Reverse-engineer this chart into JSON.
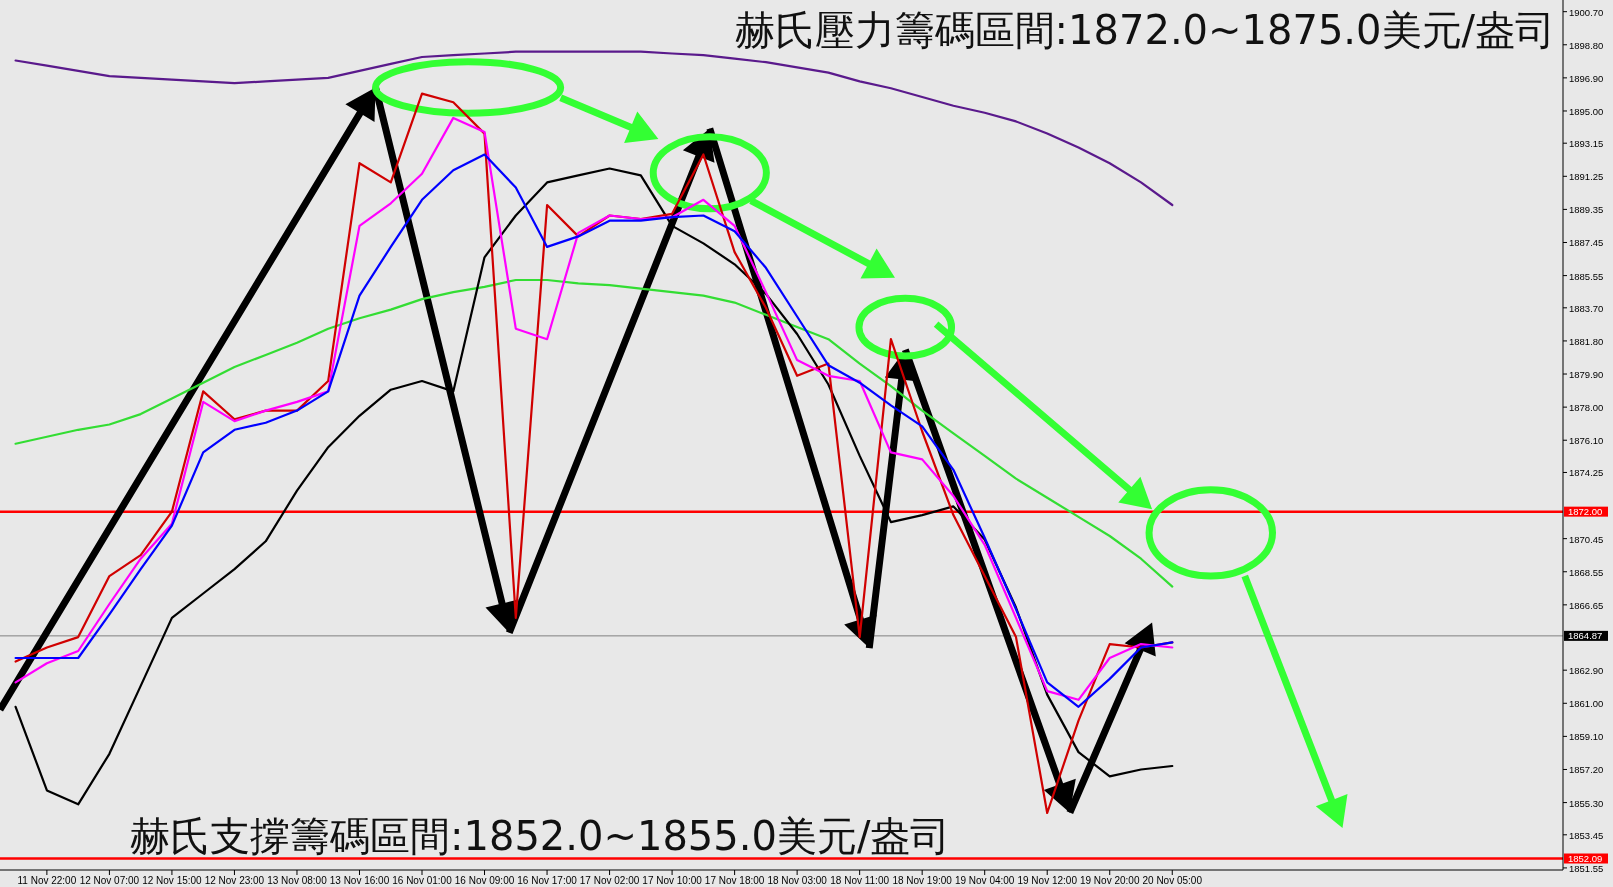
{
  "chart_data": {
    "type": "line",
    "title": "赫氏壓力籌碼區間:1872.0~1875.0美元/盎司",
    "annotations": [
      "赫氏支撐籌碼區間:1852.0~1855.0美元/盎司"
    ],
    "categories": [
      null,
      "11 Nov 22:00",
      null,
      "12 Nov 07:00",
      null,
      "12 Nov 15:00",
      null,
      "12 Nov 23:00",
      null,
      "13 Nov 08:00",
      null,
      "13 Nov 16:00",
      null,
      "16 Nov 01:00",
      null,
      "16 Nov 09:00",
      null,
      "16 Nov 17:00",
      null,
      "17 Nov 02:00",
      null,
      "17 Nov 10:00",
      null,
      "17 Nov 18:00",
      null,
      "18 Nov 03:00",
      null,
      "18 Nov 11:00",
      null,
      "18 Nov 19:00",
      null,
      "19 Nov 04:00",
      null,
      "19 Nov 12:00",
      null,
      "19 Nov 20:00",
      null,
      "20 Nov 05:00",
      null,
      null,
      null,
      null,
      null,
      null,
      null,
      null,
      null,
      null,
      null,
      null
    ],
    "ylim": [
      1851.43,
      1901.37
    ],
    "yticks": [
      {
        "value": 1900.7,
        "label": "1900.70"
      },
      {
        "value": 1898.8,
        "label": "1898.80"
      },
      {
        "value": 1896.9,
        "label": "1896.90"
      },
      {
        "value": 1895,
        "label": "1895.00"
      },
      {
        "value": 1893.15,
        "label": "1893.15"
      },
      {
        "value": 1891.25,
        "label": "1891.25"
      },
      {
        "value": 1889.35,
        "label": "1889.35"
      },
      {
        "value": 1887.45,
        "label": "1887.45"
      },
      {
        "value": 1885.55,
        "label": "1885.55"
      },
      {
        "value": 1883.7,
        "label": "1883.70"
      },
      {
        "value": 1881.8,
        "label": "1881.80"
      },
      {
        "value": 1879.9,
        "label": "1879.90"
      },
      {
        "value": 1878,
        "label": "1878.00"
      },
      {
        "value": 1876.1,
        "label": "1876.10"
      },
      {
        "value": 1874.25,
        "label": "1874.25"
      },
      {
        "value": 1870.45,
        "label": "1870.45"
      },
      {
        "value": 1868.55,
        "label": "1868.55"
      },
      {
        "value": 1866.65,
        "label": "1866.65"
      },
      {
        "value": 1862.9,
        "label": "1862.90"
      },
      {
        "value": 1861,
        "label": "1861.00"
      },
      {
        "value": 1859.1,
        "label": "1859.10"
      },
      {
        "value": 1857.2,
        "label": "1857.20"
      },
      {
        "value": 1855.3,
        "label": "1855.30"
      },
      {
        "value": 1853.45,
        "label": "1853.45"
      },
      {
        "value": 1851.55,
        "label": "1851.55"
      }
    ],
    "ref_lines": [
      {
        "axis": "y",
        "value": 1872.0,
        "label": "1872.00",
        "color": "#ff0000"
      },
      {
        "axis": "y",
        "value": 1864.87,
        "label": "1864.87",
        "color": "#808080"
      },
      {
        "axis": "y",
        "value": 1852.09,
        "label": "1852.09",
        "color": "#ff0000"
      }
    ],
    "series": [
      {
        "color": "#5a1a8c",
        "values": [
          1897.9,
          1897.6,
          1897.3,
          1897.0,
          1896.9,
          1896.8,
          1896.7,
          1896.6,
          1896.7,
          1896.8,
          1896.9,
          1897.3,
          1897.7,
          1898.1,
          1898.2,
          1898.3,
          1898.4,
          1898.4,
          1898.4,
          1898.4,
          1898.4,
          1898.3,
          1898.2,
          1898.0,
          1897.8,
          1897.5,
          1897.2,
          1896.7,
          1896.3,
          1895.8,
          1895.3,
          1894.9,
          1894.4,
          1893.7,
          1892.9,
          1892.0,
          1890.9,
          1889.6,
          null,
          null,
          null,
          null,
          null,
          null,
          null,
          null,
          null,
          null,
          null,
          null
        ]
      },
      {
        "color": "#33dd33",
        "values": [
          1875.9,
          1876.3,
          1876.7,
          1877.0,
          1877.6,
          1878.5,
          1879.4,
          1880.3,
          1881.0,
          1881.7,
          1882.5,
          1883.1,
          1883.6,
          1884.2,
          1884.6,
          1884.9,
          1885.3,
          1885.3,
          1885.1,
          1885.0,
          1884.8,
          1884.6,
          1884.4,
          1884.0,
          1883.3,
          1882.6,
          1881.9,
          1880.5,
          1879.2,
          1877.8,
          1876.5,
          1875.2,
          1873.9,
          1872.8,
          1871.7,
          1870.6,
          1869.3,
          1867.7,
          null,
          null,
          null,
          null,
          null,
          null,
          null,
          null,
          null,
          null,
          null,
          null
        ]
      },
      {
        "color": "#000000",
        "values": [
          1860.8,
          1856.0,
          1855.2,
          1858.1,
          1862.0,
          1865.9,
          1867.3,
          1868.7,
          1870.3,
          1873.2,
          1875.7,
          1877.5,
          1879.0,
          1879.5,
          1878.9,
          1886.6,
          1889.0,
          1890.9,
          1891.3,
          1891.7,
          1891.3,
          1888.4,
          1887.4,
          1886.2,
          1884.5,
          1882.2,
          1879.3,
          1875.2,
          1871.4,
          1871.8,
          1872.3,
          1870.4,
          1866.5,
          1861.5,
          1858.2,
          1856.8,
          1857.2,
          1857.4,
          null,
          null,
          null,
          null,
          null,
          null,
          null,
          null,
          null,
          null,
          null,
          null
        ]
      },
      {
        "color": "#d00000",
        "values": [
          1863.4,
          1864.2,
          1864.8,
          1868.3,
          1869.5,
          1872.0,
          1878.9,
          1877.3,
          1877.8,
          1877.8,
          1879.5,
          1892.0,
          1890.9,
          1896.0,
          1895.5,
          1893.7,
          1865.9,
          1889.6,
          1887.8,
          1889.0,
          1888.8,
          1889.1,
          1892.5,
          1886.9,
          1883.7,
          1879.8,
          1880.5,
          1864.8,
          1881.9,
          1876.6,
          1871.8,
          1868.3,
          1864.8,
          1854.7,
          1860.0,
          1864.4,
          1864.2,
          1864.5,
          null,
          null,
          null,
          null,
          null,
          null,
          null,
          null,
          null,
          null,
          null,
          null
        ]
      },
      {
        "color": "#ff00ff",
        "values": [
          1862.2,
          1863.3,
          1864.0,
          1866.7,
          1869.3,
          1871.3,
          1878.3,
          1877.2,
          1877.8,
          1878.3,
          1878.9,
          1888.4,
          1889.7,
          1891.4,
          1894.6,
          1893.8,
          1882.5,
          1881.9,
          1888.0,
          1889.0,
          1888.8,
          1888.9,
          1889.9,
          1888.4,
          1884.6,
          1880.7,
          1879.8,
          1879.5,
          1875.4,
          1875.0,
          1872.9,
          1870.1,
          1865.9,
          1861.7,
          1861.2,
          1863.6,
          1864.4,
          1864.2,
          null,
          null,
          null,
          null,
          null,
          null,
          null,
          null,
          null,
          null,
          null,
          null
        ]
      },
      {
        "color": "#0000ff",
        "values": [
          1863.6,
          1863.6,
          1863.6,
          1866.1,
          1868.7,
          1871.2,
          1875.4,
          1876.7,
          1877.1,
          1877.8,
          1878.9,
          1884.4,
          1887.2,
          1889.9,
          1891.6,
          1892.5,
          1890.6,
          1887.2,
          1887.8,
          1888.7,
          1888.7,
          1888.9,
          1889.0,
          1888.1,
          1886.0,
          1883.2,
          1880.4,
          1879.4,
          1878.1,
          1876.9,
          1874.4,
          1870.5,
          1866.4,
          1862.2,
          1860.8,
          1862.4,
          1864.2,
          1864.5,
          null,
          null,
          null,
          null,
          null,
          null,
          null,
          null,
          null,
          null,
          null,
          null
        ]
      }
    ]
  }
}
